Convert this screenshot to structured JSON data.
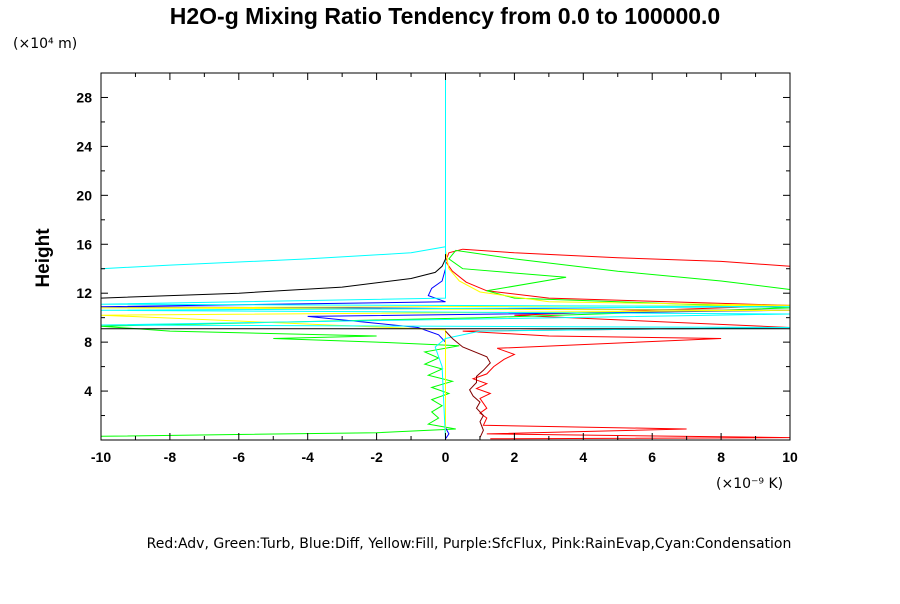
{
  "chart_data": {
    "type": "line",
    "title": "H2O-g Mixing Ratio Tendency from 0.0 to 100000.0",
    "y_unit": "(×10⁴ m)",
    "x_unit": "(×10⁻⁹ K)",
    "ylabel": "Height",
    "xlabel": "",
    "xlim": [
      -10,
      10
    ],
    "ylim": [
      0,
      30
    ],
    "x_ticks": [
      "-10",
      "-8",
      "-6",
      "-4",
      "-2",
      "0",
      "2",
      "4",
      "6",
      "8",
      "10"
    ],
    "y_ticks": [
      "4",
      "8",
      "12",
      "16",
      "20",
      "24",
      "28"
    ],
    "legend_text": "Red:Adv, Green:Turb, Blue:Diff, Yellow:Fill, Purple:SfcFlux, Pink:RainEvap,Cyan:Condensation",
    "grid": false,
    "series": [
      {
        "name": "Adv",
        "color": "#ff0000",
        "points": [
          [
            1.3,
            0.1
          ],
          [
            10,
            0.2
          ],
          [
            1.2,
            0.5
          ],
          [
            7,
            0.9
          ],
          [
            1.1,
            1.2
          ],
          [
            1.2,
            1.8
          ],
          [
            1.0,
            2.2
          ],
          [
            1.2,
            2.6
          ],
          [
            1.1,
            3.0
          ],
          [
            1.0,
            3.4
          ],
          [
            1.3,
            3.8
          ],
          [
            0.9,
            4.2
          ],
          [
            1.2,
            4.6
          ],
          [
            0.8,
            5.0
          ],
          [
            1.2,
            5.4
          ],
          [
            1.4,
            6.0
          ],
          [
            1.7,
            6.6
          ],
          [
            2.0,
            7.0
          ],
          [
            1.5,
            7.5
          ],
          [
            8.0,
            8.3
          ],
          [
            3.0,
            8.5
          ],
          [
            0.5,
            8.9
          ],
          [
            10,
            9.2
          ],
          [
            2.0,
            10.2
          ],
          [
            10,
            11.0
          ],
          [
            3.0,
            11.6
          ],
          [
            1.2,
            12.2
          ],
          [
            0.6,
            12.9
          ],
          [
            0.2,
            13.8
          ],
          [
            0.0,
            14.6
          ],
          [
            0.1,
            15.3
          ],
          [
            0.5,
            15.6
          ],
          [
            2.0,
            15.3
          ],
          [
            5.0,
            14.9
          ],
          [
            8.0,
            14.6
          ],
          [
            10,
            14.2
          ]
        ]
      },
      {
        "name": "Turb",
        "color": "#00ff00",
        "points": [
          [
            -10,
            0.3
          ],
          [
            -2,
            0.6
          ],
          [
            0.3,
            0.9
          ],
          [
            -0.5,
            1.3
          ],
          [
            -0.2,
            1.8
          ],
          [
            -0.4,
            2.3
          ],
          [
            -0.1,
            2.8
          ],
          [
            -0.4,
            3.3
          ],
          [
            0.1,
            3.8
          ],
          [
            -0.4,
            4.3
          ],
          [
            0.2,
            4.8
          ],
          [
            -0.5,
            5.3
          ],
          [
            -0.1,
            5.8
          ],
          [
            -0.6,
            6.2
          ],
          [
            -0.2,
            6.7
          ],
          [
            -0.6,
            7.2
          ],
          [
            0.4,
            7.7
          ],
          [
            -2,
            8.0
          ],
          [
            -5,
            8.3
          ],
          [
            -2,
            8.5
          ],
          [
            -8,
            8.9
          ],
          [
            -10,
            9.3
          ],
          [
            1,
            10.0
          ],
          [
            10,
            10.8
          ],
          [
            2,
            11.6
          ],
          [
            1.2,
            12.2
          ],
          [
            3.5,
            13.3
          ],
          [
            0.5,
            14.0
          ],
          [
            0.1,
            14.8
          ],
          [
            0.3,
            15.5
          ],
          [
            2.0,
            14.8
          ],
          [
            5.0,
            13.8
          ],
          [
            8.0,
            13.0
          ],
          [
            10,
            12.3
          ]
        ]
      },
      {
        "name": "Diff",
        "color": "#0000ff",
        "points": [
          [
            0.0,
            0.1
          ],
          [
            0.1,
            0.5
          ],
          [
            0.0,
            1.0
          ],
          [
            0.0,
            8.0
          ],
          [
            -0.2,
            8.6
          ],
          [
            -0.8,
            9.2
          ],
          [
            -4.0,
            10.1
          ],
          [
            10,
            10.6
          ],
          [
            -10,
            10.9
          ],
          [
            0.0,
            11.3
          ],
          [
            -0.5,
            11.8
          ],
          [
            -0.4,
            12.4
          ],
          [
            -0.1,
            13.0
          ],
          [
            0.0,
            14.0
          ],
          [
            0.0,
            16.0
          ]
        ]
      },
      {
        "name": "Fill",
        "color": "#ffff00",
        "points": [
          [
            0.0,
            0.5
          ],
          [
            0.0,
            9.0
          ],
          [
            -10,
            10.2
          ],
          [
            10,
            10.6
          ],
          [
            -10,
            10.8
          ],
          [
            10,
            11.0
          ],
          [
            3.0,
            11.3
          ],
          [
            1.0,
            12.1
          ],
          [
            0.4,
            13.0
          ],
          [
            0.1,
            14.0
          ],
          [
            0.0,
            15.5
          ],
          [
            0.0,
            16.5
          ]
        ]
      },
      {
        "name": "Condensation",
        "color": "#00ffff",
        "points": [
          [
            0.0,
            0.0
          ],
          [
            -0.1,
            6.0
          ],
          [
            -0.3,
            7.6
          ],
          [
            0.0,
            8.3
          ],
          [
            1.0,
            8.9
          ],
          [
            10,
            9.2
          ],
          [
            -10,
            9.4
          ],
          [
            10,
            10.3
          ],
          [
            -10,
            10.6
          ],
          [
            10,
            10.9
          ],
          [
            -10,
            11.1
          ],
          [
            0.0,
            11.6
          ],
          [
            0.0,
            15.8
          ],
          [
            -1.0,
            15.3
          ],
          [
            -4.0,
            14.8
          ],
          [
            -8.0,
            14.3
          ],
          [
            -10,
            14.0
          ],
          [
            -8.0,
            14.3
          ],
          [
            -4.0,
            14.8
          ],
          [
            -1.0,
            15.3
          ],
          [
            0.0,
            15.8
          ],
          [
            0.0,
            30.0
          ]
        ]
      },
      {
        "name": "",
        "color": "#000000",
        "points": [
          [
            -10,
            9.1
          ],
          [
            10,
            9.1
          ]
        ]
      },
      {
        "name": "",
        "color": "#000000",
        "points": [
          [
            -10,
            11.6
          ],
          [
            -6.0,
            12.0
          ],
          [
            -3.0,
            12.5
          ],
          [
            -1.0,
            13.2
          ],
          [
            -0.3,
            13.7
          ],
          [
            -0.1,
            14.2
          ],
          [
            0.0,
            14.8
          ],
          [
            0.0,
            15.2
          ]
        ]
      },
      {
        "name": "",
        "color": "#800000",
        "points": [
          [
            1.0,
            0.2
          ],
          [
            1.1,
            0.8
          ],
          [
            1.0,
            1.5
          ],
          [
            1.1,
            2.0
          ],
          [
            0.9,
            2.6
          ],
          [
            1.0,
            3.1
          ],
          [
            0.8,
            3.6
          ],
          [
            0.7,
            4.1
          ],
          [
            0.9,
            4.7
          ],
          [
            0.9,
            5.2
          ],
          [
            1.1,
            5.7
          ],
          [
            1.3,
            6.3
          ],
          [
            1.2,
            6.8
          ],
          [
            0.5,
            7.6
          ],
          [
            0.2,
            8.3
          ],
          [
            0.0,
            8.9
          ]
        ]
      }
    ]
  }
}
